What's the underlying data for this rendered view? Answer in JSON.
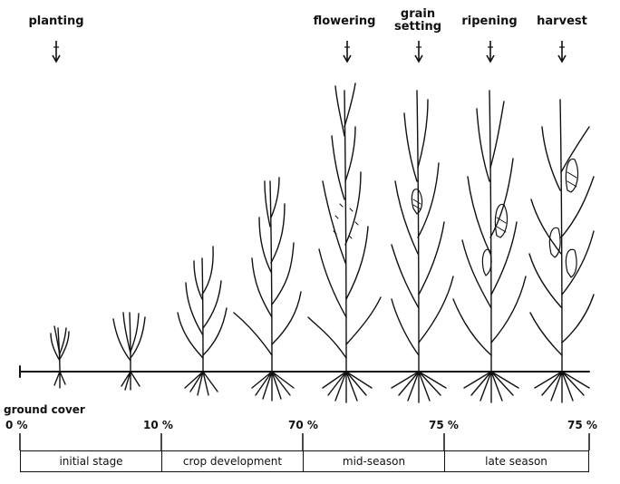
{
  "growth_events": [
    {
      "label": "planting"
    },
    {
      "label": "flowering"
    },
    {
      "label": "grain setting"
    },
    {
      "label": "ripening"
    },
    {
      "label": "harvest"
    }
  ],
  "ground_cover": {
    "title": "ground cover",
    "values": [
      "0 %",
      "10 %",
      "70 %",
      "75 %",
      "75 %"
    ]
  },
  "stages": [
    {
      "label": "initial stage"
    },
    {
      "label": "crop development"
    },
    {
      "label": "mid-season"
    },
    {
      "label": "late season"
    }
  ]
}
